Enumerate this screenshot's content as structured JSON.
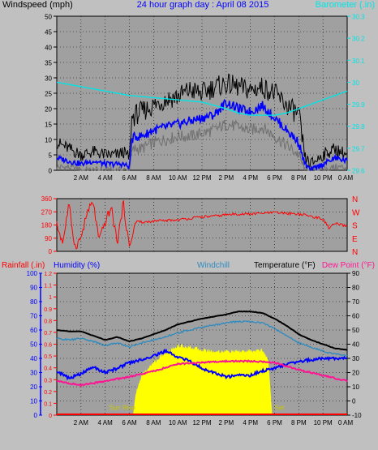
{
  "header": {
    "left_label": "Windspeed (mph)",
    "title": "24 hour graph day : April 08 2015",
    "right_label": "Barometer (.in)"
  },
  "colors": {
    "background": "#c0c0c0",
    "plot_bg": "#a0a0a0",
    "wind_gust": "#000000",
    "wind_avg": "#0000ff",
    "wind_low": "#707070",
    "barometer": "#00e5e5",
    "wind_dir": "#ff0000",
    "dir_labels": "#ff0000",
    "rainfall": "#ff0000",
    "humidity": "#0000ff",
    "windchill": "#2e8bc0",
    "temperature": "#000000",
    "dew_point": "#ff1493",
    "solar": "#ffff00",
    "sun_text": "#c8c800",
    "title_color": "#0000ff"
  },
  "x_ticks": [
    "2 AM",
    "4 AM",
    "6 AM",
    "8 AM",
    "10 AM",
    "12 PM",
    "2 PM",
    "4 PM",
    "6 PM",
    "8 PM",
    "10 PM",
    "0 AM"
  ],
  "dir_ticks": [
    "360",
    "270",
    "180",
    "90",
    "0"
  ],
  "dir_labels": [
    "N",
    "W",
    "S",
    "E",
    "N"
  ],
  "bottom_header": {
    "rainfall": "Rainfall (.in)",
    "humidity": "Humidity (%)",
    "windchill": "Windchill",
    "temperature": "Temperature (°F)",
    "dewpoint": "Dew Point (°F)"
  },
  "sun_labels": {
    "rise": "Sun Rise",
    "set": "Set"
  },
  "chart_data": [
    {
      "type": "line",
      "panel": "wind_barometer",
      "x_unit": "hour of day",
      "xlim": [
        0,
        24
      ],
      "ylabel_left": "Windspeed (mph)",
      "ylabel_right": "Barometer (.in)",
      "ylim_left": [
        0,
        50
      ],
      "ylim_right": [
        29.6,
        30.3
      ],
      "yticks_left": [
        0,
        5,
        10,
        15,
        20,
        25,
        30,
        35,
        40,
        45,
        50
      ],
      "yticks_right": [
        "29.6",
        "29.7",
        "29.8",
        "29.9",
        "30",
        "30.1",
        "30.2",
        "30.3"
      ],
      "series": [
        {
          "key": "gust",
          "axis": "left",
          "x": [
            0,
            1,
            2,
            3,
            4,
            5,
            5.5,
            6,
            6.2,
            6.5,
            7,
            8,
            9,
            10,
            11,
            12,
            13,
            14,
            15,
            16,
            17,
            18,
            19,
            20,
            20.5,
            21,
            22,
            23,
            24
          ],
          "values": [
            9,
            7,
            5,
            6,
            5,
            5,
            6,
            4,
            17,
            18,
            19,
            21,
            23,
            24,
            26,
            25,
            27,
            28,
            27,
            26,
            27,
            25,
            21,
            18,
            4,
            2,
            5,
            7,
            5
          ]
        },
        {
          "key": "average",
          "axis": "left",
          "x": [
            0,
            1,
            2,
            3,
            4,
            5,
            5.5,
            6,
            6.2,
            6.5,
            7,
            8,
            9,
            10,
            11,
            12,
            13,
            14,
            15,
            16,
            17,
            18,
            19,
            20,
            20.5,
            21,
            22,
            23,
            24
          ],
          "values": [
            4,
            3,
            2,
            3,
            2,
            2,
            2,
            1,
            10,
            11,
            11,
            13,
            14,
            15,
            16,
            17,
            18,
            22,
            20,
            19,
            21,
            17,
            13,
            9,
            2,
            0,
            2,
            4,
            3
          ]
        },
        {
          "key": "low",
          "axis": "left",
          "x": [
            0,
            1,
            2,
            3,
            4,
            5,
            5.5,
            6,
            6.2,
            6.5,
            7,
            8,
            9,
            10,
            11,
            12,
            13,
            14,
            15,
            16,
            17,
            18,
            19,
            20,
            20.5,
            21,
            22,
            23,
            24
          ],
          "values": [
            1,
            1,
            0,
            0,
            0,
            0,
            0,
            0,
            6,
            7,
            7,
            9,
            10,
            11,
            11,
            12,
            13,
            15,
            14,
            13,
            14,
            11,
            8,
            5,
            0,
            0,
            0,
            1,
            1
          ]
        },
        {
          "key": "barometer",
          "axis": "right",
          "x": [
            0,
            2,
            4,
            6,
            8,
            10,
            12,
            14,
            15,
            16,
            17,
            18,
            19,
            20,
            21,
            22,
            23,
            24
          ],
          "values": [
            30.0,
            29.98,
            29.96,
            29.94,
            29.93,
            29.92,
            29.91,
            29.88,
            29.86,
            29.85,
            29.85,
            29.85,
            29.86,
            29.88,
            29.9,
            29.92,
            29.94,
            29.96
          ]
        }
      ]
    },
    {
      "type": "scatter",
      "panel": "wind_direction",
      "x_unit": "hour of day",
      "xlim": [
        0,
        24
      ],
      "ylim": [
        0,
        360
      ],
      "series": [
        {
          "key": "direction",
          "x": [
            0,
            0.5,
            1,
            1.5,
            2,
            2.5,
            3,
            3.5,
            4,
            4.5,
            5,
            5.5,
            6,
            6.5,
            7,
            8,
            9,
            10,
            11,
            12,
            13,
            14,
            15,
            16,
            17,
            18,
            19,
            20,
            21,
            22,
            22.5,
            23,
            24
          ],
          "values": [
            180,
            60,
            320,
            30,
            90,
            260,
            340,
            70,
            200,
            300,
            60,
            330,
            20,
            200,
            200,
            205,
            210,
            215,
            225,
            235,
            240,
            250,
            255,
            255,
            260,
            265,
            260,
            255,
            240,
            220,
            160,
            190,
            170
          ]
        }
      ]
    },
    {
      "type": "line",
      "panel": "temperature_humidity",
      "x_unit": "hour of day",
      "xlim": [
        0,
        24
      ],
      "ylim_left": [
        0,
        100
      ],
      "ylim_rain": [
        0,
        1.2
      ],
      "ylim_right": [
        -10,
        90
      ],
      "yticks_left": [
        0,
        10,
        20,
        30,
        40,
        50,
        60,
        70,
        80,
        90,
        100
      ],
      "yticks_rain": [
        "0",
        "0.1",
        "0.2",
        "0.3",
        "0.4",
        "0.5",
        "0.6",
        "0.7",
        "0.8",
        "0.9",
        "1",
        "1.1",
        "1.2"
      ],
      "yticks_right": [
        -10,
        0,
        10,
        20,
        30,
        40,
        50,
        60,
        70,
        80,
        90
      ],
      "series": [
        {
          "key": "temperature",
          "axis": "right",
          "x": [
            0,
            1,
            2,
            3,
            4,
            5,
            6,
            7,
            8,
            9,
            10,
            12,
            14,
            15,
            16,
            17,
            18,
            19,
            20,
            21,
            22,
            23,
            24
          ],
          "values": [
            50,
            49,
            49,
            46,
            43,
            45,
            42,
            44,
            47,
            50,
            54,
            58,
            61,
            63,
            63,
            62,
            58,
            53,
            47,
            43,
            40,
            37,
            36
          ]
        },
        {
          "key": "windchill",
          "axis": "right",
          "x": [
            0,
            1,
            2,
            3,
            4,
            5,
            6,
            7,
            8,
            9,
            10,
            12,
            14,
            15,
            16,
            17,
            18,
            19,
            20,
            21,
            22,
            23,
            24
          ],
          "values": [
            44,
            43,
            44,
            42,
            39,
            41,
            38,
            41,
            43,
            45,
            48,
            52,
            55,
            56,
            56,
            55,
            51,
            46,
            41,
            38,
            35,
            33,
            32
          ]
        },
        {
          "key": "humidity",
          "axis": "left",
          "x": [
            0,
            1,
            2,
            3,
            4,
            5,
            6,
            7,
            8,
            9,
            10,
            11,
            12,
            13,
            14,
            15,
            16,
            17,
            18,
            19,
            20,
            21,
            22,
            23,
            24
          ],
          "values": [
            31,
            26,
            29,
            34,
            30,
            33,
            37,
            39,
            42,
            45,
            41,
            38,
            33,
            30,
            27,
            28,
            28,
            31,
            33,
            36,
            38,
            39,
            40,
            40,
            40
          ]
        },
        {
          "key": "dewpoint",
          "axis": "right",
          "x": [
            0,
            2,
            4,
            6,
            8,
            10,
            12,
            14,
            16,
            18,
            20,
            22,
            24
          ],
          "values": [
            14,
            11,
            14,
            17,
            21,
            26,
            27,
            28,
            28,
            27,
            22,
            18,
            14
          ]
        },
        {
          "key": "solar",
          "axis": "left",
          "x": [
            6.3,
            6.5,
            7,
            8,
            9,
            10,
            11,
            12,
            13,
            14,
            15,
            16,
            17,
            17.5,
            17.8
          ],
          "values": [
            0,
            14,
            28,
            37,
            44,
            49,
            48,
            46,
            45,
            45,
            45,
            45,
            46,
            38,
            0
          ]
        },
        {
          "key": "rainfall",
          "axis": "rain",
          "x": [
            0,
            24
          ],
          "values": [
            0,
            0
          ]
        }
      ]
    }
  ]
}
